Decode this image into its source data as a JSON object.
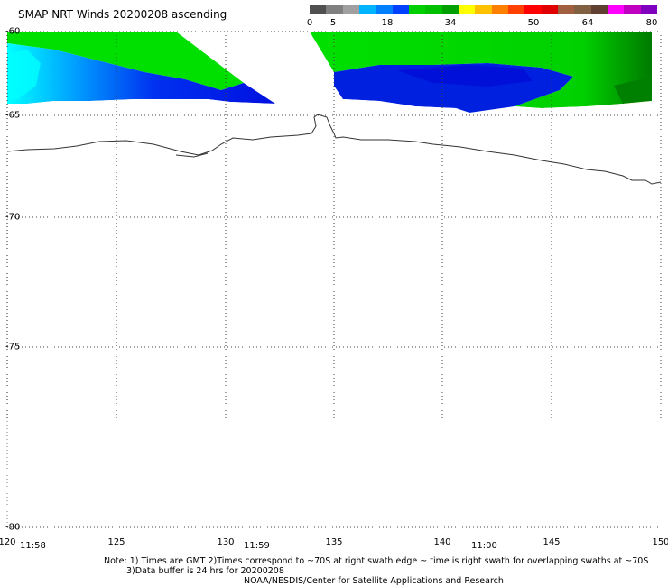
{
  "title": "SMAP NRT Winds 20200208 ascending",
  "colorbar": {
    "ticks": [
      "0",
      "5",
      "18",
      "34",
      "50",
      "64",
      "80"
    ],
    "colors": [
      "#505050",
      "#808080",
      "#a0a0a0",
      "#00b4ff",
      "#0080ff",
      "#0040ff",
      "#00d000",
      "#00c000",
      "#00a000",
      "#ffff00",
      "#ffc000",
      "#ff8000",
      "#ff4000",
      "#ff0000",
      "#e00000",
      "#a06040",
      "#806040",
      "#604030",
      "#ff00ff",
      "#c000c0",
      "#8000c0"
    ]
  },
  "latitude_labels": [
    "-60",
    "-65",
    "-70",
    "-75",
    "-80"
  ],
  "longitude_labels": [
    "120",
    "125",
    "130",
    "135",
    "140",
    "145",
    "150"
  ],
  "time_labels": [
    "11:58",
    "11:59",
    "11:00"
  ],
  "wind_colors": {
    "calm_cyan": "#00ffff",
    "light_blue": "#0090ff",
    "blue": "#0020e0",
    "green": "#00e000",
    "dark_green": "#008000",
    "yellow": "#ffff00"
  },
  "notes": {
    "line1": "Note: 1) Times are GMT 2)Times correspond to ~70S at right swath edge ~ time is right swath for overlapping swaths at ~70S",
    "line2": "3)Data buffer is 24 hrs for 20200208",
    "line3": "NOAA/NESDIS/Center for Satellite Applications and Research"
  }
}
